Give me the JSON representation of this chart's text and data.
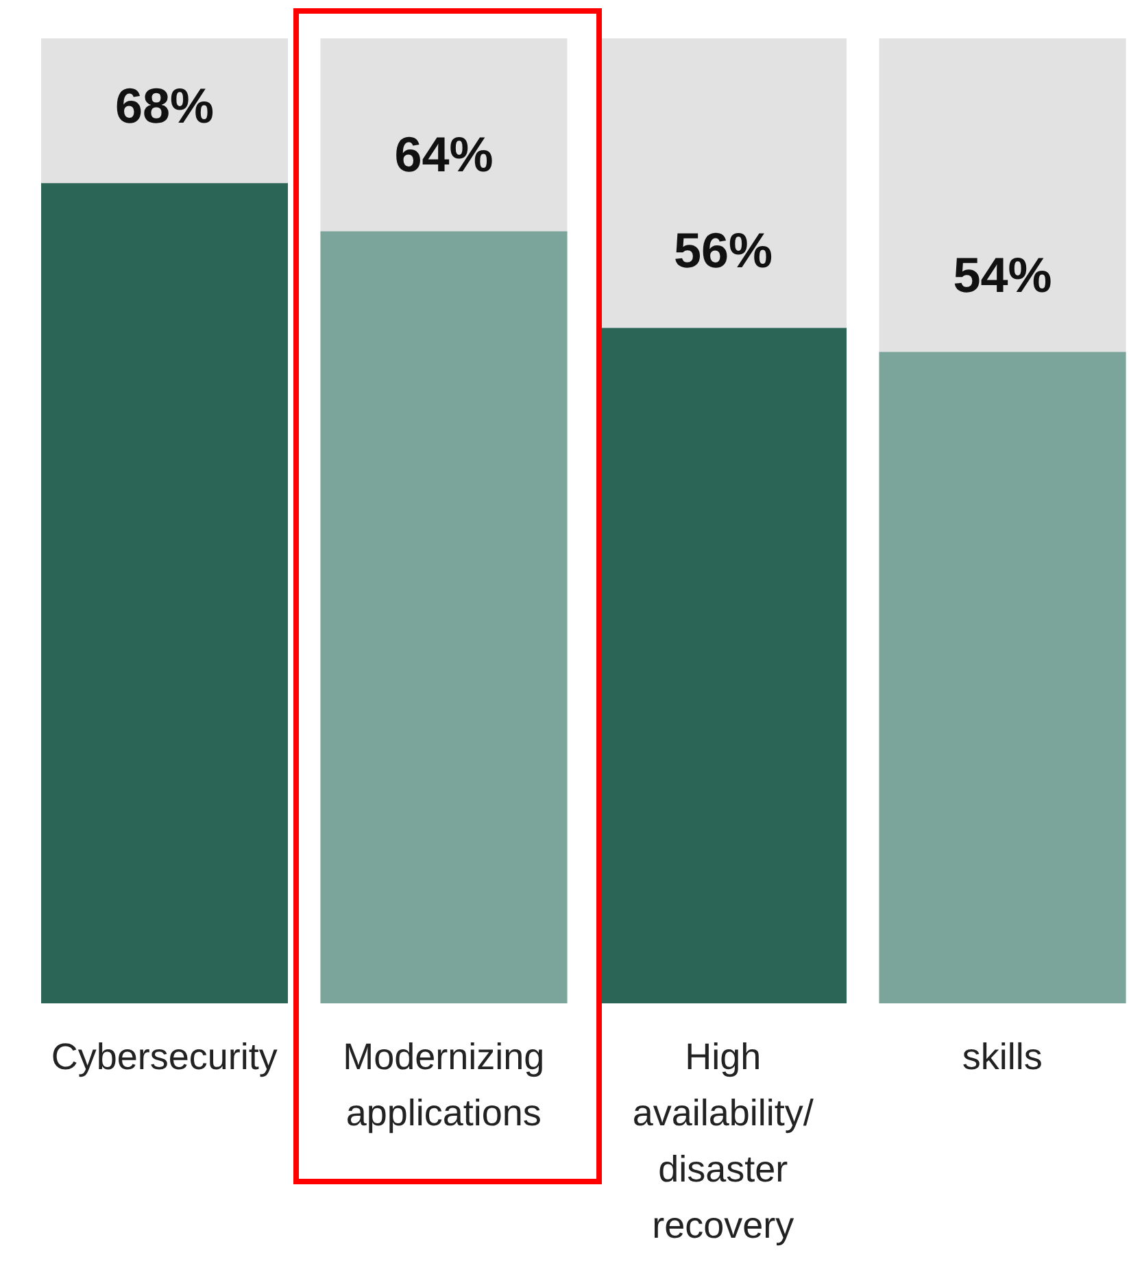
{
  "chart_data": {
    "type": "bar",
    "categories": [
      "Cybersecurity",
      "Modernizing applications",
      "High availability/ disaster recovery",
      "skills"
    ],
    "values": [
      68,
      64,
      56,
      54
    ],
    "colors": [
      "#2a6555",
      "#7ba59a",
      "#2a6555",
      "#7ba59a"
    ],
    "value_labels": [
      "68%",
      "64%",
      "56%",
      "54%"
    ],
    "tick_labels": "x"
  }
}
